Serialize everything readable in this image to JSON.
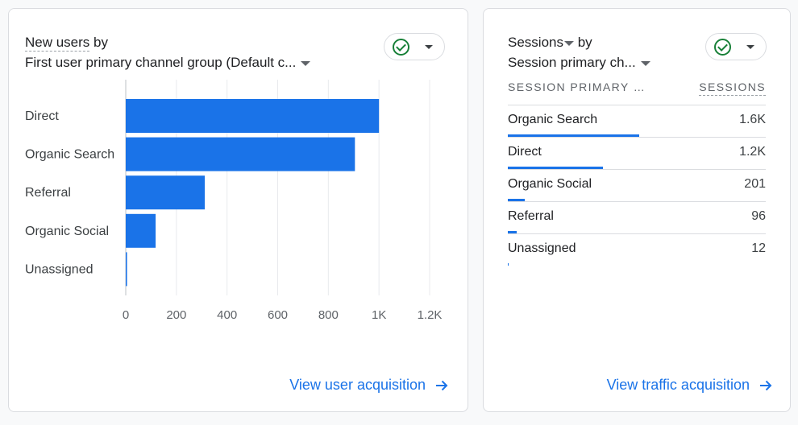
{
  "users_card": {
    "title_metric": "New users",
    "title_by": "by",
    "title_dimension": "First user primary channel group (Default c...",
    "footer_link": "View user acquisition"
  },
  "sessions_card": {
    "title_metric": "Sessions",
    "title_by": "by",
    "title_dimension": "Session primary ch...",
    "col_dimension": "SESSION PRIMARY …",
    "col_metric": "SESSIONS",
    "rows": [
      {
        "label": "Organic Search",
        "value": "1.6K",
        "fraction": 0.51
      },
      {
        "label": "Direct",
        "value": "1.2K",
        "fraction": 0.37
      },
      {
        "label": "Organic Social",
        "value": "201",
        "fraction": 0.065
      },
      {
        "label": "Referral",
        "value": "96",
        "fraction": 0.035
      },
      {
        "label": "Unassigned",
        "value": "12",
        "fraction": 0.004
      }
    ],
    "footer_link": "View traffic acquisition"
  },
  "colors": {
    "accent": "#1a73e8",
    "status_ok": "#188038"
  },
  "chart_data": {
    "type": "bar",
    "orientation": "horizontal",
    "categories": [
      "Direct",
      "Organic Search",
      "Referral",
      "Organic Social",
      "Unassigned"
    ],
    "values": [
      1000,
      905,
      312,
      118,
      5
    ],
    "xlim": [
      0,
      1200
    ],
    "xticks": [
      0,
      200,
      400,
      600,
      800,
      1000,
      1200
    ],
    "xtick_labels": [
      "0",
      "200",
      "400",
      "600",
      "800",
      "1K",
      "1.2K"
    ],
    "grid": true
  }
}
